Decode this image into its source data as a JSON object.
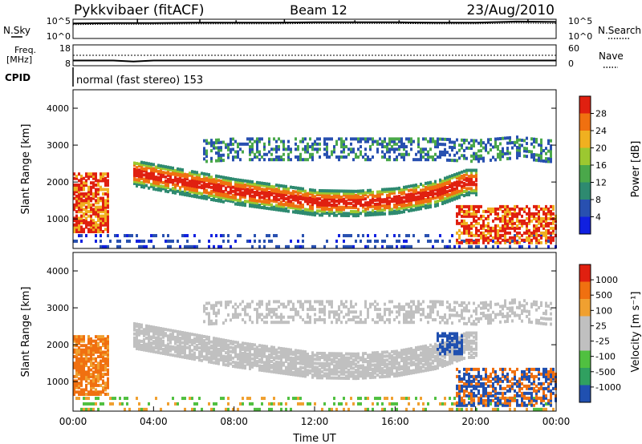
{
  "header": {
    "station": "Pykkvibaer (fitACF)",
    "beam": "Beam 12",
    "date": "23/Aug/2010",
    "cpid_label": "CPID",
    "cpid_value": "normal (fast stereo) 153"
  },
  "chart_data": [
    {
      "type": "line",
      "name": "nsky-nsearch-strip",
      "left_label": "N.Sky",
      "right_label": "N.Search",
      "left_ticks": [
        "10^5",
        "10^0"
      ],
      "right_ticks": [
        "10^5",
        "10^0"
      ],
      "x": [
        0,
        2,
        4,
        6,
        8,
        10,
        12,
        14,
        16,
        18,
        20,
        22,
        24
      ],
      "series": [
        {
          "values": [
            3.9,
            4.0,
            4.0,
            4.1,
            4.1,
            4.1,
            4.2,
            4.2,
            4.2,
            4.1,
            4.1,
            4.4,
            4.3
          ]
        },
        {
          "values": [
            3.6,
            3.7,
            3.7,
            3.8,
            3.8,
            3.8,
            3.9,
            3.9,
            3.9,
            3.8,
            3.8,
            4.0,
            3.9
          ]
        }
      ]
    },
    {
      "type": "line",
      "name": "freq-nave-strip",
      "left_label_1": "Freq.",
      "left_label_2": "[MHz]",
      "right_label": "Nave",
      "left_ticks": [
        "18",
        "8"
      ],
      "right_ticks": [
        "60",
        "0"
      ],
      "x": [
        0,
        2,
        3,
        4,
        8,
        12,
        16,
        20,
        24
      ],
      "series": [
        {
          "values": [
            10.5,
            10.5,
            10.0,
            10.5,
            10.5,
            10.5,
            10.5,
            10.5,
            10.5
          ]
        },
        {
          "values": [
            13.0,
            13.0,
            13.0,
            13.0,
            13.0,
            13.0,
            13.0,
            13.0,
            13.0
          ]
        }
      ]
    },
    {
      "type": "heatmap",
      "name": "power-panel",
      "ylabel": "Slant Range [km]",
      "yticks": [
        "4000",
        "3000",
        "2000",
        "1000"
      ],
      "ylim": [
        200,
        4500
      ],
      "xlim": [
        0,
        24
      ],
      "colorbar_label": "Power [dB]",
      "colorbar_ticks": [
        "28",
        "24",
        "20",
        "16",
        "12",
        "8",
        "4"
      ],
      "colors": [
        "#1020e0",
        "#2850b0",
        "#2e8a70",
        "#4aa84a",
        "#9cc830",
        "#f0b020",
        "#f07010",
        "#e02010"
      ],
      "main_band": {
        "x": [
          3,
          6,
          8,
          10,
          12,
          14,
          16,
          18,
          19.5
        ],
        "y": [
          2300,
          2000,
          1800,
          1650,
          1500,
          1480,
          1550,
          1750,
          2050
        ]
      },
      "upper_band": {
        "x": [
          6.5,
          8,
          10,
          12,
          14,
          16,
          18,
          20,
          22,
          23.5
        ],
        "y": [
          2800,
          2850,
          2850,
          2850,
          2850,
          2850,
          2850,
          2800,
          2900,
          2800
        ]
      }
    },
    {
      "type": "heatmap",
      "name": "velocity-panel",
      "ylabel": "Slant Range [km]",
      "yticks": [
        "4000",
        "3000",
        "2000",
        "1000"
      ],
      "ylim": [
        200,
        4500
      ],
      "xlim": [
        0,
        24
      ],
      "xticks": [
        "00:00",
        "04:00",
        "08:00",
        "12:00",
        "16:00",
        "20:00",
        "00:00"
      ],
      "xlabel": "Time UT",
      "colorbar_label": "Velocity [m s⁻¹]",
      "colorbar_ticks": [
        "1000",
        "500",
        "100",
        "25",
        "-25",
        "-100",
        "-500",
        "-1000"
      ],
      "colors": [
        "#e02010",
        "#f07010",
        "#f0a030",
        "#c0c0c0",
        "#c0c0c0",
        "#50c040",
        "#30a060",
        "#2050b0"
      ]
    }
  ]
}
